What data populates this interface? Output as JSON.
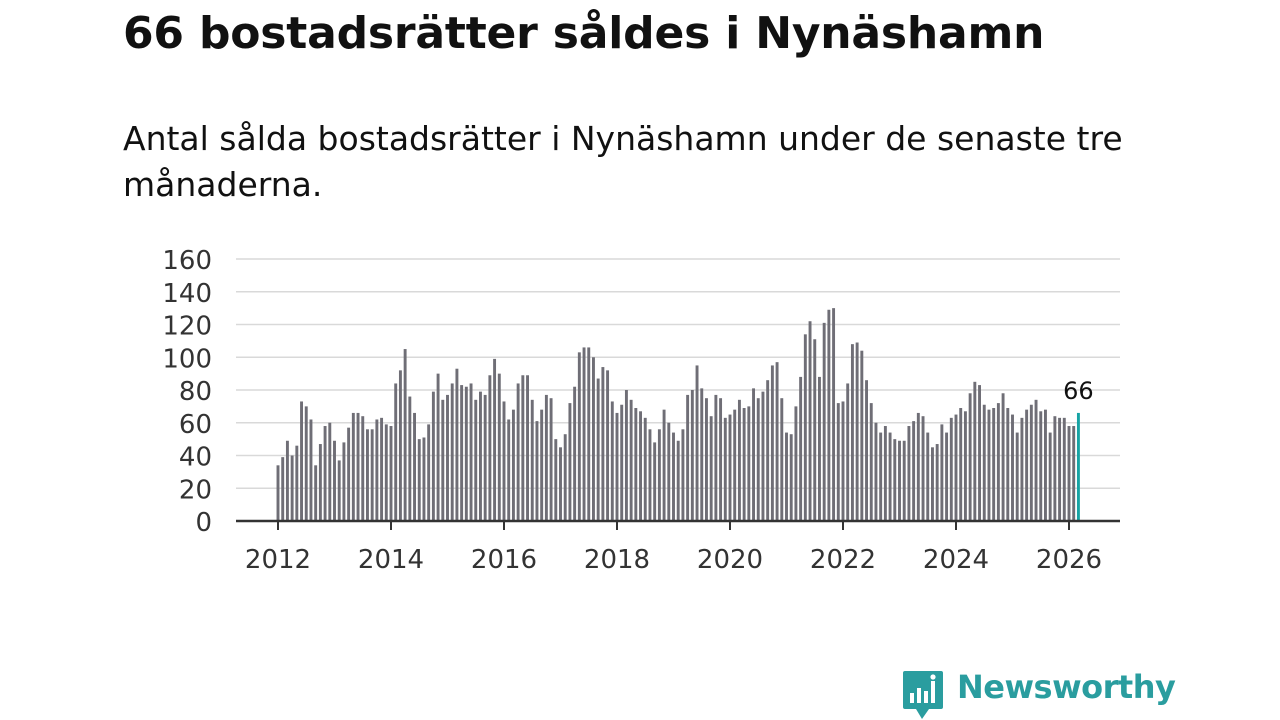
{
  "title": "66 bostadsrätter såldes i Nynäshamn",
  "subtitle": "Antal sålda bostadsrätter i Nynäshamn under de senaste tre månaderna.",
  "brand": {
    "name": "Newsworthy",
    "color": "#2a9d9f"
  },
  "colors": {
    "bar": "#6f6e76",
    "highlight": "#16a3a4",
    "grid": "#d9d9d9",
    "axis": "#333333"
  },
  "chart_data": {
    "type": "bar",
    "title": "",
    "xlabel": "",
    "ylabel": "",
    "ylim": [
      0,
      160
    ],
    "yticks": [
      0,
      20,
      40,
      60,
      80,
      100,
      120,
      140,
      160
    ],
    "xticks": [
      "2012",
      "2014",
      "2016",
      "2018",
      "2020",
      "2022",
      "2024",
      "2026"
    ],
    "xlim_years": [
      2011.6,
      2026.88
    ],
    "start": {
      "year": 2012,
      "month": 1
    },
    "frequency": "monthly (rolling three-month total)",
    "highlight": {
      "label": "Mar 2026",
      "value": 66,
      "annotation": "66"
    },
    "values": [
      34,
      39,
      49,
      40,
      46,
      73,
      70,
      62,
      34,
      47,
      58,
      60,
      49,
      37,
      48,
      57,
      66,
      66,
      64,
      56,
      56,
      62,
      63,
      59,
      58,
      84,
      92,
      105,
      76,
      66,
      50,
      51,
      59,
      79,
      90,
      74,
      77,
      84,
      93,
      83,
      82,
      84,
      74,
      79,
      77,
      89,
      99,
      90,
      73,
      62,
      68,
      84,
      89,
      89,
      74,
      61,
      68,
      77,
      75,
      50,
      45,
      53,
      72,
      82,
      103,
      106,
      106,
      100,
      87,
      94,
      92,
      73,
      66,
      71,
      80,
      74,
      69,
      67,
      63,
      56,
      48,
      56,
      68,
      60,
      54,
      49,
      56,
      77,
      80,
      95,
      81,
      75,
      64,
      77,
      75,
      63,
      65,
      68,
      74,
      69,
      70,
      81,
      75,
      79,
      86,
      95,
      97,
      75,
      54,
      53,
      70,
      88,
      114,
      122,
      111,
      88,
      121,
      129,
      130,
      72,
      73,
      84,
      108,
      109,
      104,
      86,
      72,
      60,
      54,
      58,
      54,
      50,
      49,
      49,
      58,
      61,
      66,
      64,
      54,
      45,
      47,
      59,
      54,
      63,
      65,
      69,
      67,
      78,
      85,
      83,
      71,
      68,
      69,
      72,
      78,
      69,
      65,
      54,
      63,
      68,
      71,
      74,
      67,
      68,
      54,
      64,
      63,
      63,
      58,
      58,
      66
    ]
  }
}
